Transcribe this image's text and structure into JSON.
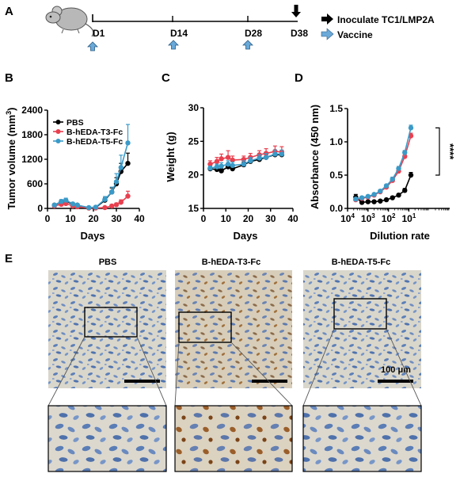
{
  "panels": {
    "a": "A",
    "b": "B",
    "c": "C",
    "d": "D",
    "e": "E"
  },
  "timeline": {
    "days": [
      "D1",
      "D14",
      "D28",
      "D38"
    ],
    "legend_inoculate": "Inoculate TC1/LMP2A",
    "legend_vaccine": "Vaccine",
    "colors": {
      "inoculate": "#000000",
      "vaccine": "#6aa9d8"
    }
  },
  "chart_data": [
    {
      "type": "line",
      "panel": "B",
      "xlabel": "Days",
      "ylabel": "Tumor volume (mm3)",
      "xlim": [
        0,
        40
      ],
      "ylim": [
        0,
        2400
      ],
      "x_ticks": [
        "0",
        "10",
        "20",
        "30",
        "40"
      ],
      "y_ticks": [
        "0",
        "600",
        "1200",
        "1800",
        "2400"
      ],
      "legend_position": "top-left",
      "x": [
        3,
        6,
        8,
        11,
        13,
        18,
        21,
        25,
        28,
        30,
        32,
        35
      ],
      "series": [
        {
          "name": "PBS",
          "color": "#000000",
          "values": [
            80,
            160,
            180,
            100,
            80,
            10,
            20,
            200,
            400,
            600,
            900,
            1100
          ],
          "errors": [
            20,
            40,
            40,
            30,
            30,
            5,
            10,
            60,
            100,
            150,
            200,
            250
          ]
        },
        {
          "name": "B-hEDA-T3-Fc",
          "color": "#e8404f",
          "values": [
            60,
            100,
            120,
            60,
            40,
            10,
            10,
            20,
            60,
            90,
            150,
            300
          ],
          "errors": [
            20,
            30,
            30,
            20,
            15,
            5,
            5,
            10,
            30,
            40,
            60,
            120
          ]
        },
        {
          "name": "B-hEDA-T5-Fc",
          "color": "#3a9ac8",
          "values": [
            80,
            170,
            200,
            110,
            80,
            20,
            30,
            220,
            400,
            650,
            1000,
            1600
          ],
          "errors": [
            25,
            45,
            50,
            35,
            30,
            10,
            15,
            70,
            120,
            200,
            300,
            450
          ]
        }
      ]
    },
    {
      "type": "line",
      "panel": "C",
      "xlabel": "Days",
      "ylabel": "Weight (g)",
      "xlim": [
        0,
        40
      ],
      "ylim": [
        15,
        30
      ],
      "x_ticks": [
        "0",
        "10",
        "20",
        "30",
        "40"
      ],
      "y_ticks": [
        "15",
        "20",
        "25",
        "30"
      ],
      "x": [
        3,
        6,
        8,
        11,
        13,
        18,
        21,
        25,
        28,
        32,
        35
      ],
      "series": [
        {
          "color": "#000000",
          "values": [
            20.9,
            20.8,
            20.6,
            21.2,
            20.9,
            21.5,
            22.0,
            22.3,
            22.6,
            23.0,
            23.0
          ],
          "errors": [
            0.3,
            0.3,
            0.3,
            0.4,
            0.3,
            0.4,
            0.4,
            0.4,
            0.5,
            0.5,
            0.5
          ]
        },
        {
          "color": "#e8404f",
          "values": [
            21.6,
            22.0,
            22.4,
            22.6,
            22.2,
            22.3,
            22.6,
            23.0,
            23.2,
            23.5,
            23.4
          ],
          "errors": [
            0.5,
            0.6,
            0.7,
            1.0,
            0.6,
            0.5,
            0.6,
            0.6,
            0.7,
            0.8,
            0.8
          ]
        },
        {
          "color": "#3a9ac8",
          "values": [
            21.0,
            21.2,
            21.3,
            21.6,
            21.4,
            21.6,
            22.1,
            22.5,
            22.6,
            23.1,
            23.1
          ],
          "errors": [
            0.3,
            0.4,
            0.5,
            0.5,
            0.5,
            0.5,
            0.5,
            0.5,
            0.6,
            0.6,
            0.6
          ]
        }
      ]
    },
    {
      "type": "line",
      "panel": "D",
      "xlabel": "Dilution rate",
      "ylabel": "Absorbance (450 nm)",
      "x_scale": "log",
      "xlim_log10": [
        -4,
        1
      ],
      "ylim": [
        0,
        1.5
      ],
      "x_ticks": [
        "10^4",
        "10^3",
        "10^2",
        "10^1"
      ],
      "y_ticks": [
        "0.0",
        "0.5",
        "1.0",
        "1.5"
      ],
      "significance": "****",
      "x_log10": [
        -3.6,
        -3.3,
        -3.0,
        -2.7,
        -2.4,
        -2.1,
        -1.8,
        -1.5,
        -1.2,
        -0.9,
        -0.6
      ],
      "series": [
        {
          "color": "#000000",
          "values": [
            0.17,
            0.09,
            0.1,
            0.1,
            0.11,
            0.13,
            0.16,
            0.2,
            0.27,
            0.5,
            null
          ],
          "errors": [
            0.04,
            0.02,
            0.02,
            0.02,
            0.02,
            0.02,
            0.02,
            0.02,
            0.03,
            0.04,
            null
          ]
        },
        {
          "color": "#e8404f",
          "values": [
            0.13,
            0.15,
            0.17,
            0.2,
            0.25,
            0.32,
            0.42,
            0.56,
            0.78,
            1.09,
            null
          ],
          "errors": [
            0.02,
            0.02,
            0.02,
            0.02,
            0.02,
            0.02,
            0.03,
            0.03,
            0.03,
            0.04,
            null
          ]
        },
        {
          "color": "#3a9ac8",
          "values": [
            0.14,
            0.16,
            0.18,
            0.21,
            0.26,
            0.34,
            0.44,
            0.6,
            0.84,
            1.21,
            null
          ],
          "errors": [
            0.02,
            0.02,
            0.02,
            0.02,
            0.02,
            0.02,
            0.03,
            0.03,
            0.03,
            0.04,
            null
          ]
        }
      ]
    }
  ],
  "histology": {
    "titles": [
      "PBS",
      "B-hEDA-T3-Fc",
      "B-hEDA-T5-Fc"
    ],
    "scale_label": "100 μm"
  }
}
